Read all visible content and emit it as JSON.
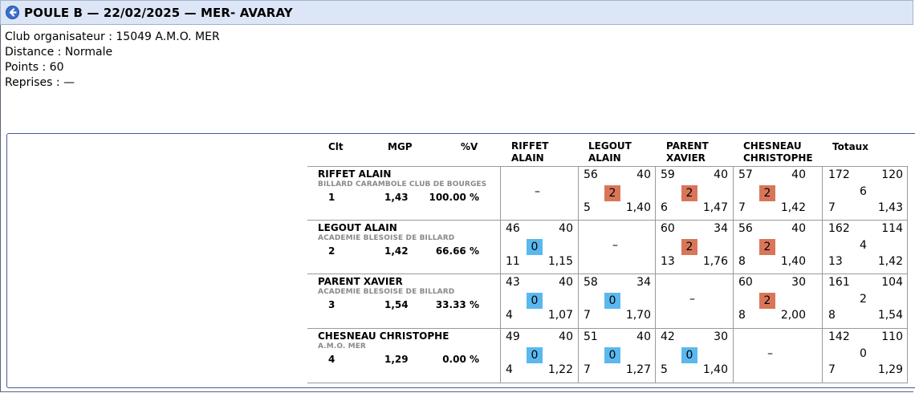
{
  "title": "POULE B — 22/02/2025 — MER- AVARAY",
  "info": {
    "club": "Club organisateur : 15049 A.M.O. MER",
    "distance": "Distance : Normale",
    "points": "Points : 60",
    "reprises": "Reprises : —"
  },
  "headers": {
    "clt": "Clt",
    "mgp": "MGP",
    "pctv": "%V",
    "opponents": [
      {
        "line1": "RIFFET",
        "line2": "ALAIN"
      },
      {
        "line1": "LEGOUT",
        "line2": "ALAIN"
      },
      {
        "line1": "PARENT",
        "line2": "XAVIER"
      },
      {
        "line1": "CHESNEAU",
        "line2": "CHRISTOPHE"
      }
    ],
    "totaux": "Totaux"
  },
  "players": [
    {
      "name": "RIFFET ALAIN",
      "club": "BILLARD CARAMBOLE CLUB DE BOURGES",
      "clt": "1",
      "mgp": "1,43",
      "pctv": "100.00 %",
      "matches": [
        {
          "self": true,
          "dash": "–"
        },
        {
          "pts": "56",
          "target": "40",
          "result": "2",
          "reprises": "5",
          "moy": "1,40"
        },
        {
          "pts": "59",
          "target": "40",
          "result": "2",
          "reprises": "6",
          "moy": "1,47"
        },
        {
          "pts": "57",
          "target": "40",
          "result": "2",
          "reprises": "7",
          "moy": "1,42"
        }
      ],
      "totals": {
        "pts": "172",
        "target": "120",
        "mp": "6",
        "reprises": "7",
        "moy": "1,43"
      }
    },
    {
      "name": "LEGOUT ALAIN",
      "club": "ACADEMIE BLESOISE DE BILLARD",
      "clt": "2",
      "mgp": "1,42",
      "pctv": "66.66 %",
      "matches": [
        {
          "pts": "46",
          "target": "40",
          "result": "0",
          "reprises": "11",
          "moy": "1,15"
        },
        {
          "self": true,
          "dash": "–"
        },
        {
          "pts": "60",
          "target": "34",
          "result": "2",
          "reprises": "13",
          "moy": "1,76"
        },
        {
          "pts": "56",
          "target": "40",
          "result": "2",
          "reprises": "8",
          "moy": "1,40"
        }
      ],
      "totals": {
        "pts": "162",
        "target": "114",
        "mp": "4",
        "reprises": "13",
        "moy": "1,42"
      }
    },
    {
      "name": "PARENT XAVIER",
      "club": "ACADEMIE BLESOISE DE BILLARD",
      "clt": "3",
      "mgp": "1,54",
      "pctv": "33.33 %",
      "matches": [
        {
          "pts": "43",
          "target": "40",
          "result": "0",
          "reprises": "4",
          "moy": "1,07"
        },
        {
          "pts": "58",
          "target": "34",
          "result": "0",
          "reprises": "7",
          "moy": "1,70"
        },
        {
          "self": true,
          "dash": "–"
        },
        {
          "pts": "60",
          "target": "30",
          "result": "2",
          "reprises": "8",
          "moy": "2,00"
        }
      ],
      "totals": {
        "pts": "161",
        "target": "104",
        "mp": "2",
        "reprises": "8",
        "moy": "1,54"
      }
    },
    {
      "name": "CHESNEAU CHRISTOPHE",
      "club": "A.M.O. MER",
      "clt": "4",
      "mgp": "1,29",
      "pctv": "0.00 %",
      "matches": [
        {
          "pts": "49",
          "target": "40",
          "result": "0",
          "reprises": "4",
          "moy": "1,22"
        },
        {
          "pts": "51",
          "target": "40",
          "result": "0",
          "reprises": "7",
          "moy": "1,27"
        },
        {
          "pts": "42",
          "target": "30",
          "result": "0",
          "reprises": "5",
          "moy": "1,40"
        },
        {
          "self": true,
          "dash": "–"
        }
      ],
      "totals": {
        "pts": "142",
        "target": "110",
        "mp": "0",
        "reprises": "7",
        "moy": "1,29"
      }
    }
  ],
  "colors": {
    "win": "#d9765a",
    "loss": "#5bb8ee",
    "titlebar": "#dde6f6"
  }
}
